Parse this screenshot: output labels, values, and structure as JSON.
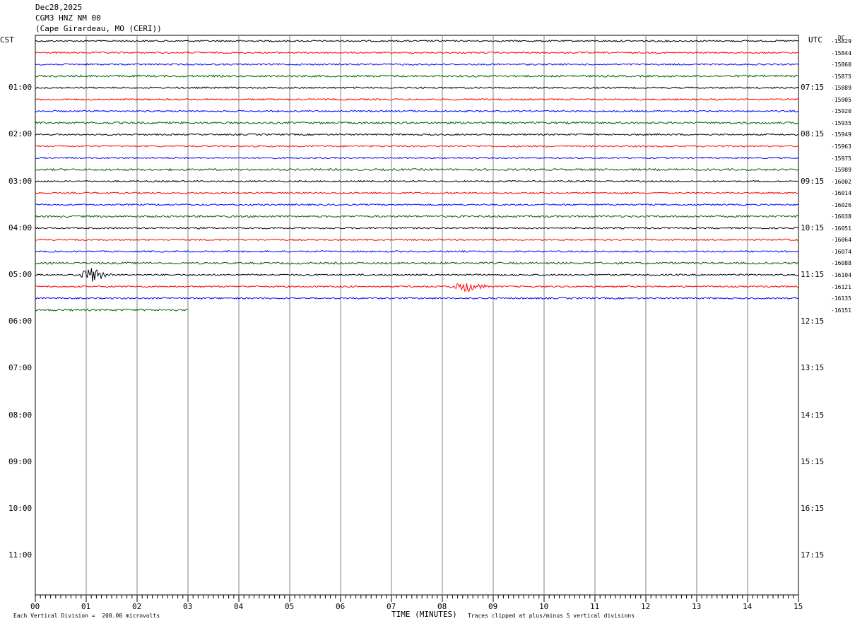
{
  "header": {
    "date": "Dec28,2025",
    "station": "CGM3 HNZ NM 00",
    "location": "(Cape Girardeau, MO (CERI))"
  },
  "left_timezone": "CST",
  "right_timezone": "UTC",
  "dc_label": "DC",
  "footer": {
    "scale_note": "Each Vertical Division =  200.00 microvolts",
    "xlabel": "TIME (MINUTES)",
    "clip_note": "Traces clipped at plus/minus 5 vertical divisions"
  },
  "colors": {
    "trace_cycle": [
      "#000000",
      "#ff0000",
      "#0000ff",
      "#006400"
    ],
    "grid": "#808080"
  },
  "chart_data": {
    "type": "line",
    "x_ticks": [
      "00",
      "01",
      "02",
      "03",
      "04",
      "05",
      "06",
      "07",
      "08",
      "09",
      "10",
      "11",
      "12",
      "13",
      "14",
      "15"
    ],
    "xlim": [
      0,
      15
    ],
    "left_hour_labels": [
      "01:00",
      "02:00",
      "03:00",
      "04:00",
      "05:00",
      "06:00",
      "07:00",
      "08:00",
      "09:00",
      "10:00",
      "11:00"
    ],
    "right_hour_labels": [
      "07:15",
      "08:15",
      "09:15",
      "10:15",
      "11:15",
      "12:15",
      "13:15",
      "14:15",
      "15:15",
      "16:15",
      "17:15"
    ],
    "dc_offsets": [
      "-15829",
      "-15844",
      "-15860",
      "-15875",
      "-15889",
      "-15905",
      "-15920",
      "-15935",
      "-15949",
      "-15963",
      "-15975",
      "-15989",
      "-16002",
      "-16014",
      "-16026",
      "-16038",
      "-16051",
      "-16064",
      "-16074",
      "-16088",
      "-16104",
      "-16121",
      "-16135",
      "-16151"
    ],
    "traces_complete": 23,
    "last_trace_end_minute": 3,
    "events": [
      {
        "trace": 20,
        "minute": 1.1,
        "note": "spike"
      },
      {
        "trace": 21,
        "minute": 8.5,
        "note": "burst"
      }
    ]
  }
}
